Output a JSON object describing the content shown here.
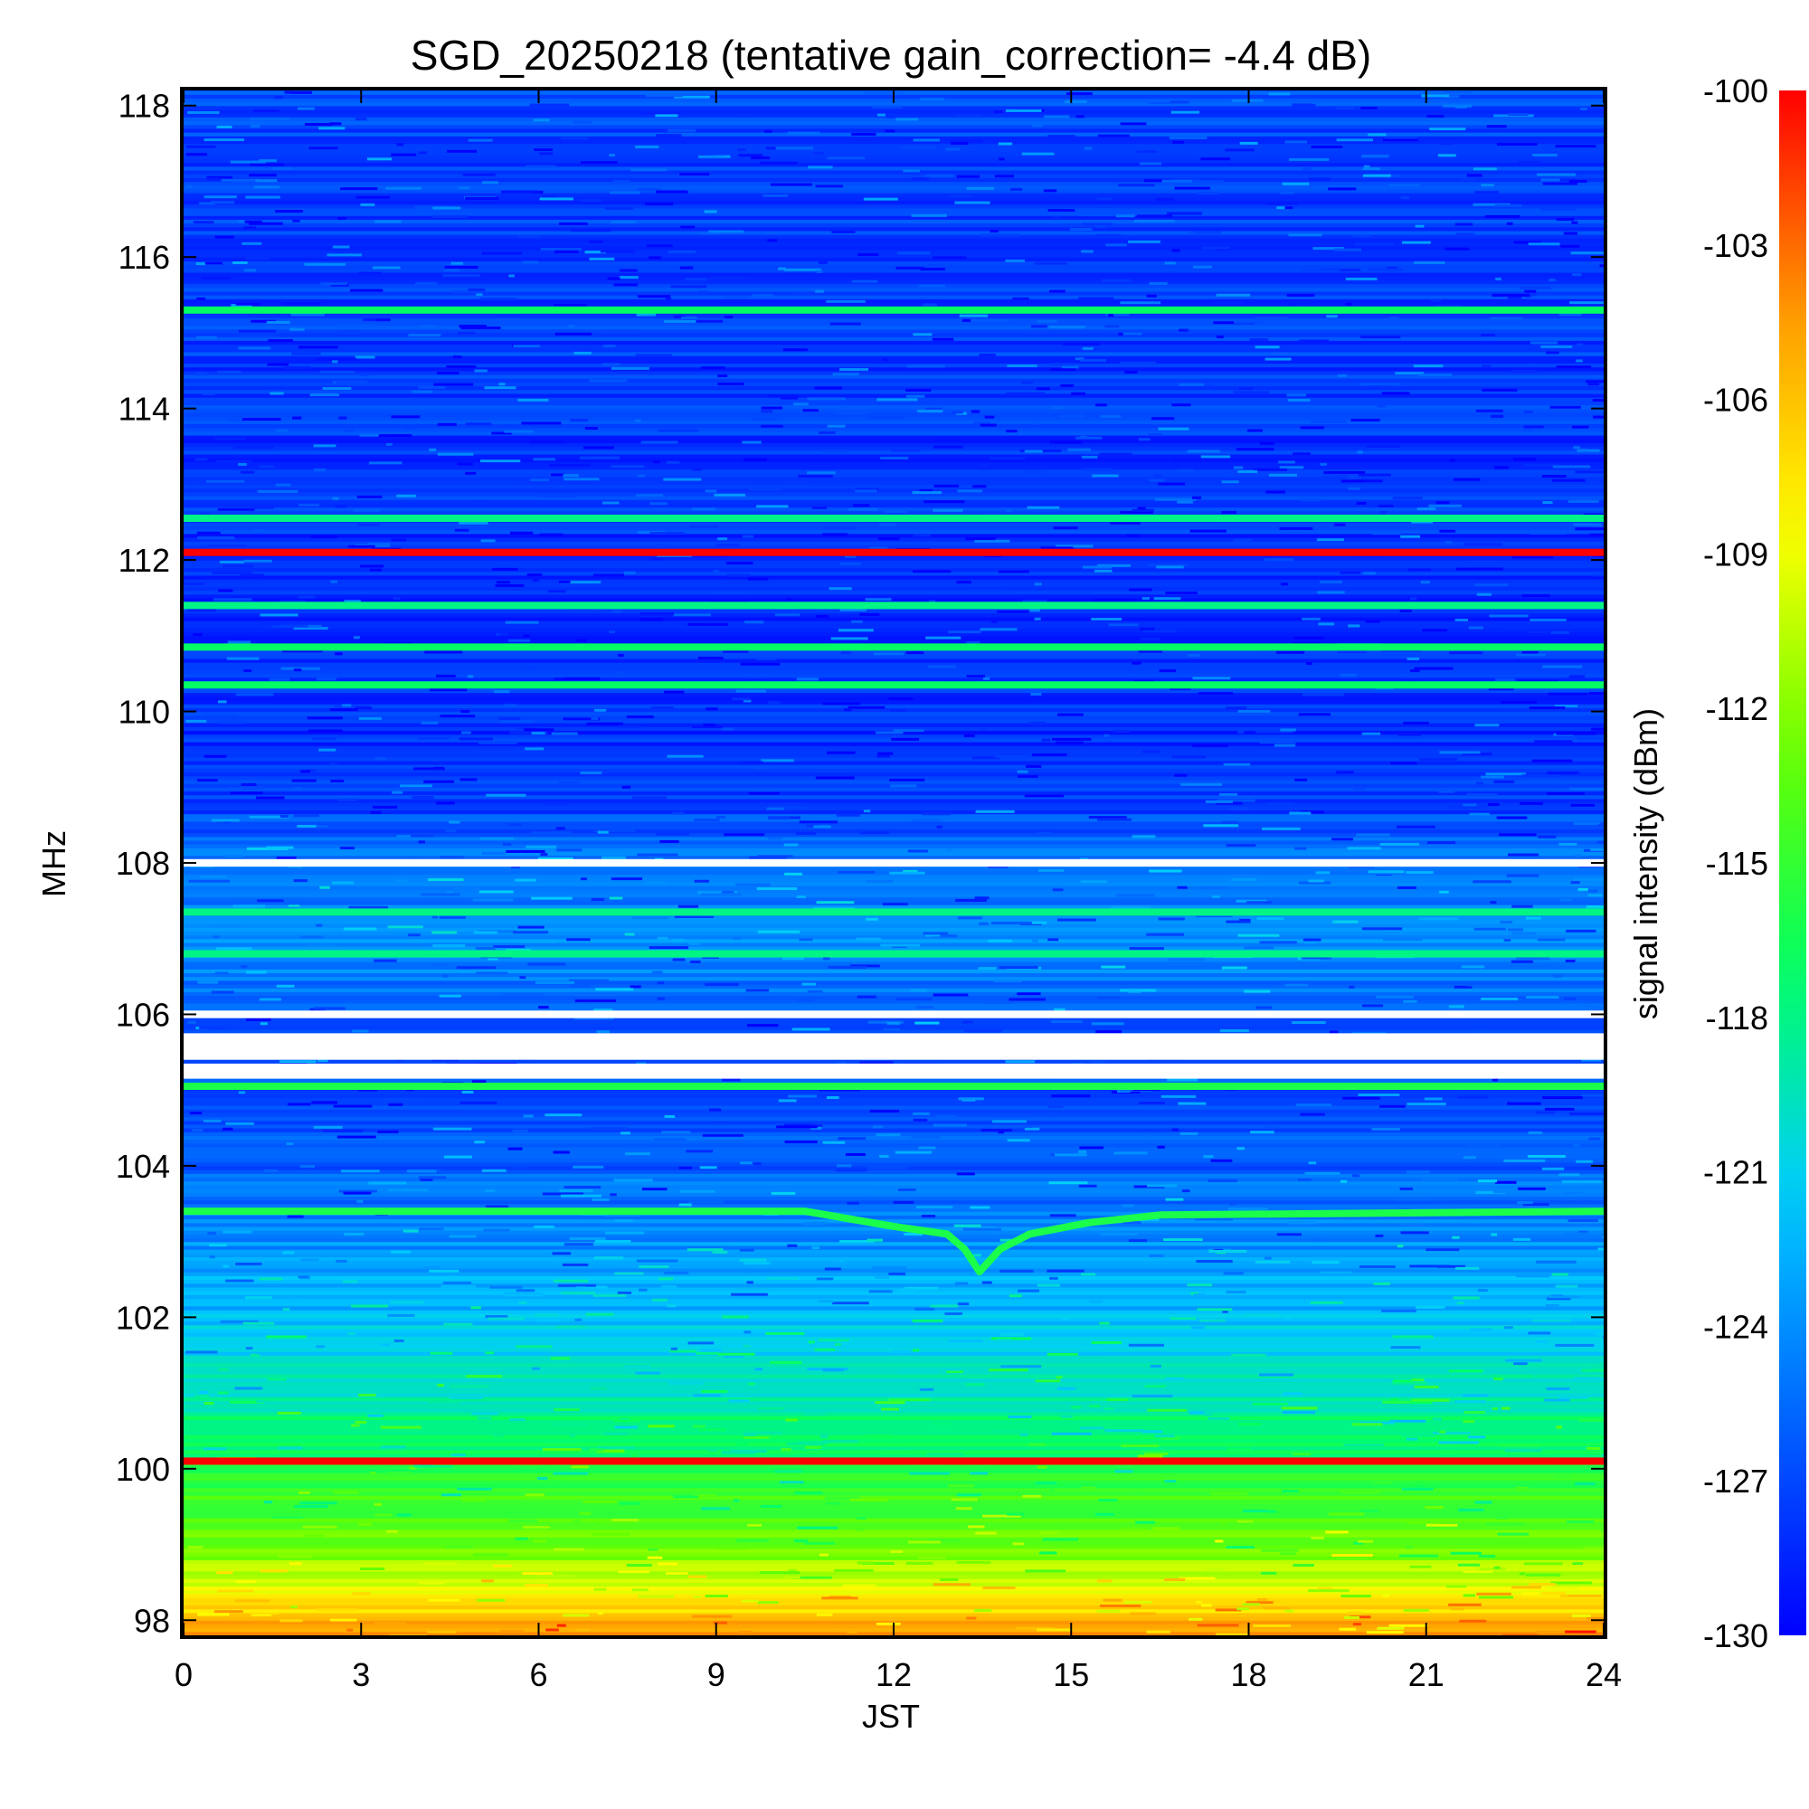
{
  "chart_data": {
    "type": "heatmap",
    "title": "SGD_20250218 (tentative gain_correction= -4.4 dB)",
    "xlabel": "JST",
    "ylabel": "MHz",
    "colorbar_label": "signal intensity (dBm)",
    "xlim": [
      0,
      24
    ],
    "ylim": [
      97.8,
      118.2
    ],
    "clim": [
      -130,
      -100
    ],
    "x_ticks": [
      0,
      3,
      6,
      9,
      12,
      15,
      18,
      21,
      24
    ],
    "y_ticks": [
      98,
      100,
      102,
      104,
      106,
      108,
      110,
      112,
      114,
      116,
      118
    ],
    "colorbar_ticks": [
      -100,
      -103,
      -106,
      -109,
      -112,
      -115,
      -118,
      -121,
      -124,
      -127,
      -130
    ],
    "colormap": [
      "#0000ff",
      "#0066ff",
      "#00ccff",
      "#00ff66",
      "#66ff00",
      "#ffff00",
      "#ff9900",
      "#ff0000"
    ],
    "background_profile": [
      {
        "f": 97.8,
        "dbm": -104
      },
      {
        "f": 98.0,
        "dbm": -106
      },
      {
        "f": 98.4,
        "dbm": -109
      },
      {
        "f": 99.0,
        "dbm": -113
      },
      {
        "f": 100.0,
        "dbm": -116
      },
      {
        "f": 101.0,
        "dbm": -119
      },
      {
        "f": 102.0,
        "dbm": -122
      },
      {
        "f": 103.0,
        "dbm": -124
      },
      {
        "f": 104.0,
        "dbm": -126
      },
      {
        "f": 105.0,
        "dbm": -127
      },
      {
        "f": 106.0,
        "dbm": -126
      },
      {
        "f": 107.0,
        "dbm": -124
      },
      {
        "f": 108.0,
        "dbm": -125
      },
      {
        "f": 109.0,
        "dbm": -128
      },
      {
        "f": 112.0,
        "dbm": -128
      },
      {
        "f": 118.2,
        "dbm": -127
      }
    ],
    "stations": [
      {
        "freq_mhz": 100.1,
        "dbm": -100
      },
      {
        "freq_mhz": 112.1,
        "dbm": -100
      },
      {
        "freq_mhz": 115.3,
        "dbm": -117
      },
      {
        "freq_mhz": 112.55,
        "dbm": -118
      },
      {
        "freq_mhz": 111.4,
        "dbm": -118
      },
      {
        "freq_mhz": 110.85,
        "dbm": -117
      },
      {
        "freq_mhz": 110.35,
        "dbm": -117
      },
      {
        "freq_mhz": 107.35,
        "dbm": -118
      },
      {
        "freq_mhz": 106.8,
        "dbm": -118
      },
      {
        "freq_mhz": 105.05,
        "dbm": -116
      }
    ],
    "drifting_signal": {
      "dbm": -116,
      "points": [
        {
          "t": 0,
          "f": 103.4
        },
        {
          "t": 10.5,
          "f": 103.4
        },
        {
          "t": 12.0,
          "f": 103.2
        },
        {
          "t": 12.9,
          "f": 103.1
        },
        {
          "t": 13.2,
          "f": 102.9
        },
        {
          "t": 13.45,
          "f": 102.6
        },
        {
          "t": 13.8,
          "f": 102.9
        },
        {
          "t": 14.3,
          "f": 103.1
        },
        {
          "t": 15.3,
          "f": 103.25
        },
        {
          "t": 16.5,
          "f": 103.35
        },
        {
          "t": 24,
          "f": 103.4
        }
      ]
    },
    "saturated_bands": [
      {
        "f_low": 107.95,
        "f_high": 108.05
      },
      {
        "f_low": 105.95,
        "f_high": 106.05
      },
      {
        "f_low": 105.15,
        "f_high": 105.35
      },
      {
        "f_low": 105.4,
        "f_high": 105.75
      }
    ],
    "grid": false
  }
}
